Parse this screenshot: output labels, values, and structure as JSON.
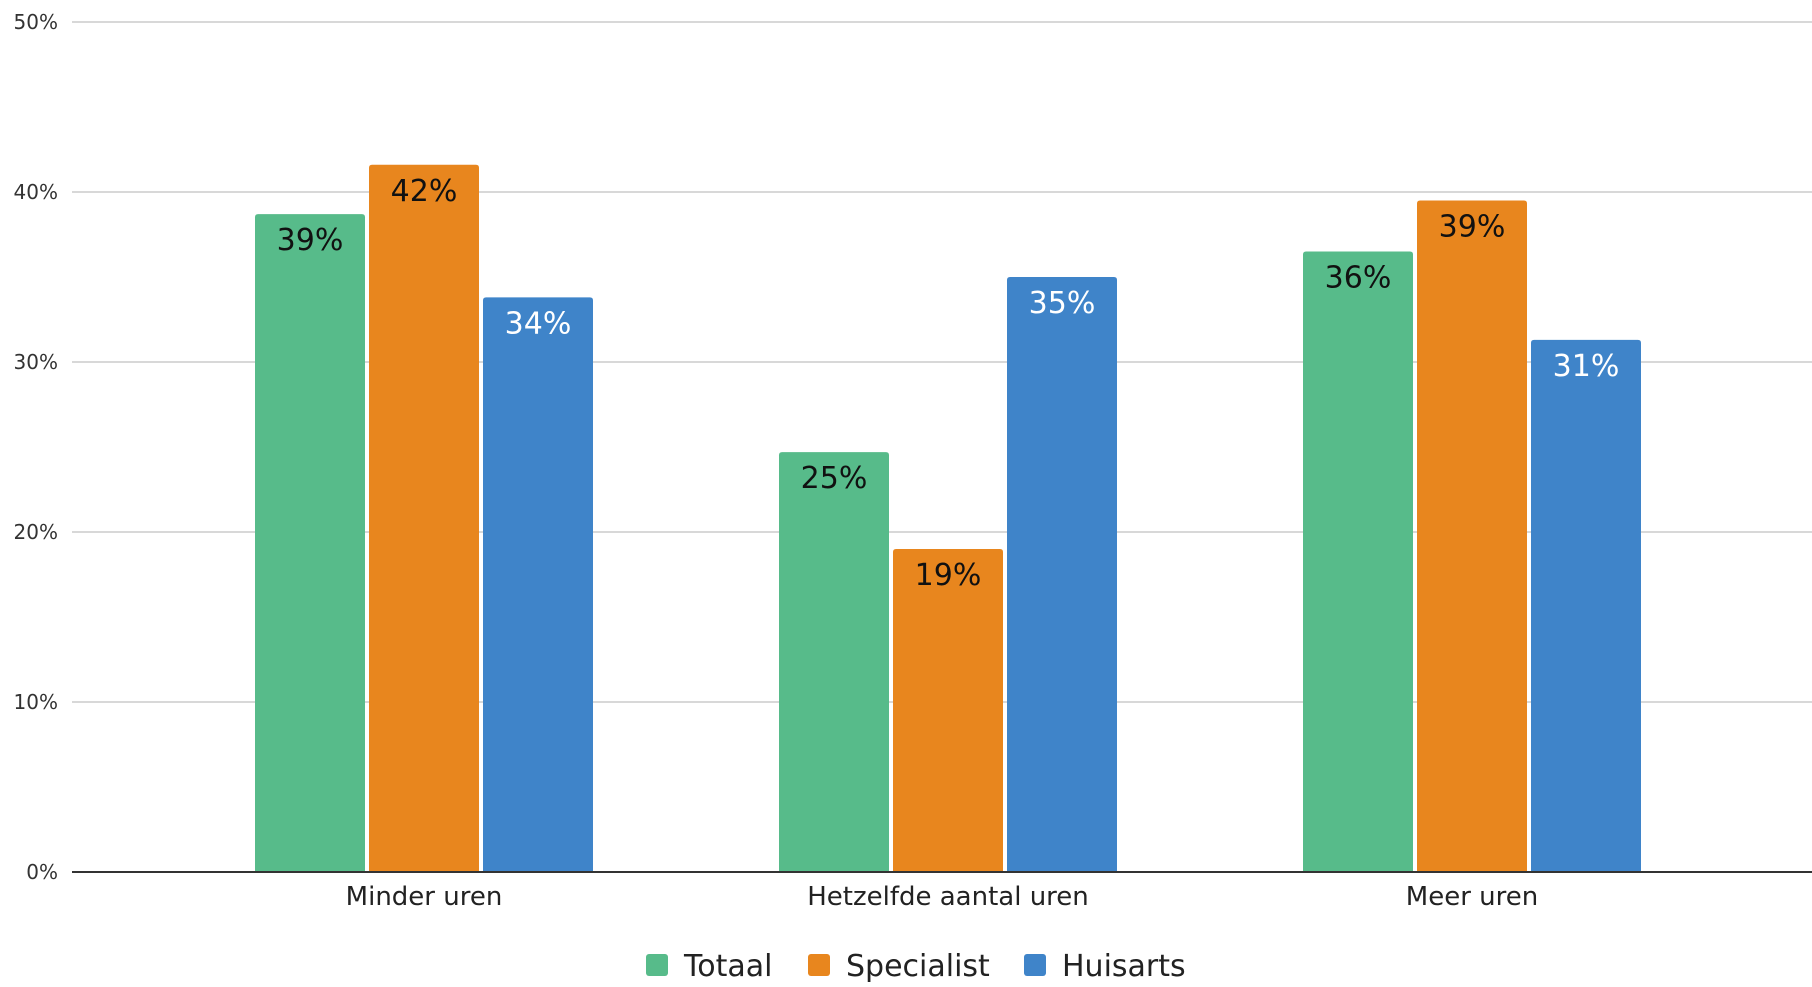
{
  "chart_data": {
    "type": "bar",
    "title": "",
    "xlabel": "",
    "ylabel": "",
    "categories": [
      "Minder uren",
      "Hetzelfde aantal uren",
      "Meer uren"
    ],
    "series": [
      {
        "name": "Totaal",
        "color": "#57bb8a",
        "label_color": "#111111",
        "values": [
          39,
          25,
          36
        ],
        "labels": [
          "39%",
          "25%",
          "36%"
        ],
        "bar_values": [
          38.7,
          24.7,
          36.5
        ]
      },
      {
        "name": "Specialist",
        "color": "#e8861e",
        "label_color": "#111111",
        "values": [
          42,
          19,
          39
        ],
        "labels": [
          "42%",
          "19%",
          "39%"
        ],
        "bar_values": [
          41.6,
          19.0,
          39.5
        ]
      },
      {
        "name": "Huisarts",
        "color": "#3f84c9",
        "label_color": "#ffffff",
        "values": [
          34,
          35,
          31
        ],
        "labels": [
          "34%",
          "35%",
          "31%"
        ],
        "bar_values": [
          33.8,
          35.0,
          31.3
        ]
      }
    ],
    "ylim": [
      0,
      50
    ],
    "yticks": [
      0,
      10,
      20,
      30,
      40,
      50
    ],
    "ytick_labels": [
      "0%",
      "10%",
      "20%",
      "30%",
      "40%",
      "50%"
    ],
    "grid": true,
    "legend": "bottom-center"
  }
}
